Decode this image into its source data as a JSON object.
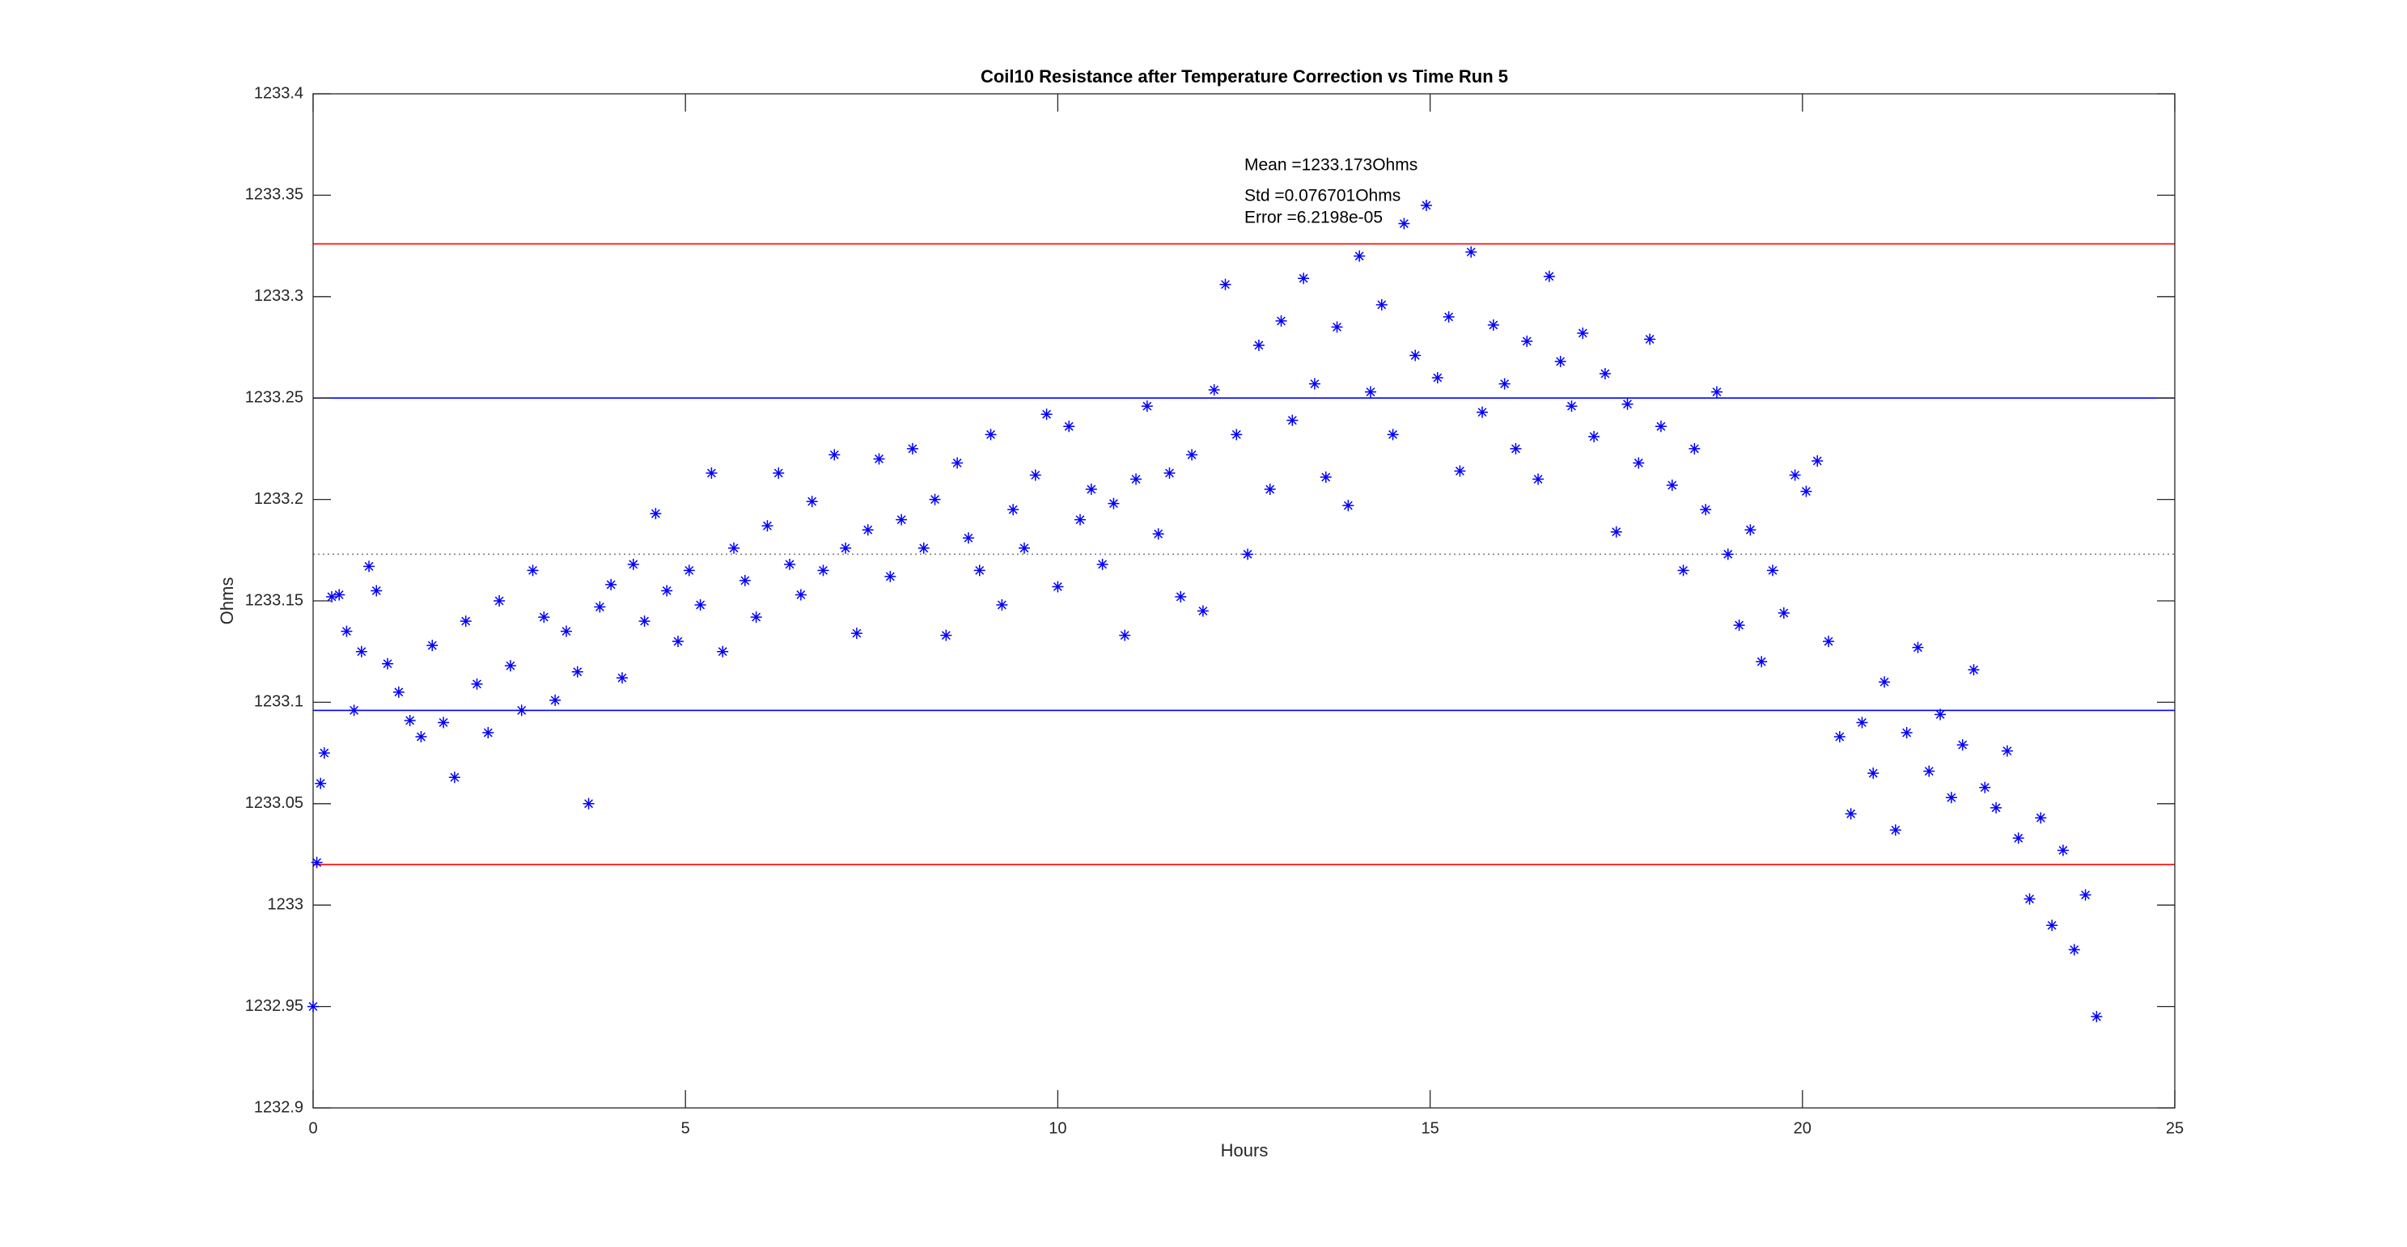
{
  "chart_data": {
    "type": "scatter",
    "title": "Coil10 Resistance after Temperature Correction vs Time Run 5",
    "x_label": "Hours",
    "y_label": "Ohms",
    "annotations": [
      "Mean =1233.173Ohms",
      "Std =0.076701Ohms",
      "Error =6.2198e-05"
    ],
    "xlim": [
      0,
      25
    ],
    "xticks": [
      0,
      5,
      10,
      15,
      20,
      25
    ],
    "ylim": [
      1232.9,
      1233.4
    ],
    "yticks": [
      1232.9,
      1232.95,
      1233,
      1233.05,
      1233.1,
      1233.15,
      1233.2,
      1233.25,
      1233.3,
      1233.35,
      1233.4
    ],
    "reference_lines": [
      {
        "value": 1233.326,
        "color": "#ff0000",
        "style": "solid"
      },
      {
        "value": 1233.25,
        "color": "#0000ff",
        "style": "solid"
      },
      {
        "value": 1233.173,
        "color": "#808080",
        "style": "dotted"
      },
      {
        "value": 1233.096,
        "color": "#0000ff",
        "style": "solid"
      },
      {
        "value": 1233.02,
        "color": "#ff0000",
        "style": "solid"
      }
    ],
    "series": [
      {
        "color": "#0000ff",
        "marker": "*",
        "x": [
          0,
          0.05,
          0.1,
          0.15,
          0.25,
          0.35,
          0.45,
          0.55,
          0.65,
          0.75,
          0.85,
          1.0,
          1.15,
          1.3,
          1.45,
          1.6,
          1.75,
          1.9,
          2.05,
          2.2,
          2.35,
          2.5,
          2.65,
          2.8,
          2.95,
          3.1,
          3.25,
          3.4,
          3.55,
          3.7,
          3.85,
          4.0,
          4.15,
          4.3,
          4.45,
          4.6,
          4.75,
          4.9,
          5.05,
          5.2,
          5.35,
          5.5,
          5.65,
          5.8,
          5.95,
          6.1,
          6.25,
          6.4,
          6.55,
          6.7,
          6.85,
          7.0,
          7.15,
          7.3,
          7.45,
          7.6,
          7.75,
          7.9,
          8.05,
          8.2,
          8.35,
          8.5,
          8.65,
          8.8,
          8.95,
          9.1,
          9.25,
          9.4,
          9.55,
          9.7,
          9.85,
          10.0,
          10.15,
          10.3,
          10.45,
          10.6,
          10.75,
          10.9,
          11.05,
          11.2,
          11.35,
          11.5,
          11.65,
          11.8,
          11.95,
          12.1,
          12.25,
          12.4,
          12.55,
          12.7,
          12.85,
          13.0,
          13.15,
          13.3,
          13.45,
          13.6,
          13.75,
          13.9,
          14.05,
          14.2,
          14.35,
          14.5,
          14.65,
          14.8,
          14.95,
          15.1,
          15.25,
          15.4,
          15.55,
          15.7,
          15.85,
          16.0,
          16.15,
          16.3,
          16.45,
          16.6,
          16.75,
          16.9,
          17.05,
          17.2,
          17.35,
          17.5,
          17.65,
          17.8,
          17.95,
          18.1,
          18.25,
          18.4,
          18.55,
          18.7,
          18.85,
          19.0,
          19.15,
          19.3,
          19.45,
          19.6,
          19.75,
          19.9,
          20.05,
          20.2,
          20.35,
          20.5,
          20.65,
          20.8,
          20.95,
          21.1,
          21.25,
          21.4,
          21.55,
          21.7,
          21.85,
          22.0,
          22.15,
          22.3,
          22.45,
          22.6,
          22.75,
          22.9,
          23.05,
          23.2,
          23.35,
          23.5,
          23.65,
          23.8,
          23.95
        ],
        "values": [
          1232.95,
          1233.021,
          1233.06,
          1233.075,
          1233.152,
          1233.153,
          1233.135,
          1233.096,
          1233.125,
          1233.167,
          1233.155,
          1233.119,
          1233.105,
          1233.091,
          1233.083,
          1233.128,
          1233.09,
          1233.063,
          1233.14,
          1233.109,
          1233.085,
          1233.15,
          1233.118,
          1233.096,
          1233.165,
          1233.142,
          1233.101,
          1233.135,
          1233.115,
          1233.05,
          1233.147,
          1233.158,
          1233.112,
          1233.168,
          1233.14,
          1233.193,
          1233.155,
          1233.13,
          1233.165,
          1233.148,
          1233.213,
          1233.125,
          1233.176,
          1233.16,
          1233.142,
          1233.187,
          1233.213,
          1233.168,
          1233.153,
          1233.199,
          1233.165,
          1233.222,
          1233.176,
          1233.134,
          1233.185,
          1233.22,
          1233.162,
          1233.19,
          1233.225,
          1233.176,
          1233.2,
          1233.133,
          1233.218,
          1233.181,
          1233.165,
          1233.232,
          1233.148,
          1233.195,
          1233.176,
          1233.212,
          1233.242,
          1233.157,
          1233.236,
          1233.19,
          1233.205,
          1233.168,
          1233.198,
          1233.133,
          1233.21,
          1233.246,
          1233.183,
          1233.213,
          1233.152,
          1233.222,
          1233.145,
          1233.254,
          1233.306,
          1233.232,
          1233.173,
          1233.276,
          1233.205,
          1233.288,
          1233.239,
          1233.309,
          1233.257,
          1233.211,
          1233.285,
          1233.197,
          1233.32,
          1233.253,
          1233.296,
          1233.232,
          1233.336,
          1233.271,
          1233.345,
          1233.26,
          1233.29,
          1233.214,
          1233.322,
          1233.243,
          1233.286,
          1233.257,
          1233.225,
          1233.278,
          1233.21,
          1233.31,
          1233.268,
          1233.246,
          1233.282,
          1233.231,
          1233.262,
          1233.184,
          1233.247,
          1233.218,
          1233.279,
          1233.236,
          1233.207,
          1233.165,
          1233.225,
          1233.195,
          1233.253,
          1233.173,
          1233.138,
          1233.185,
          1233.12,
          1233.165,
          1233.144,
          1233.212,
          1233.204,
          1233.219,
          1233.13,
          1233.083,
          1233.045,
          1233.09,
          1233.065,
          1233.11,
          1233.037,
          1233.085,
          1233.127,
          1233.066,
          1233.094,
          1233.053,
          1233.079,
          1233.116,
          1233.058,
          1233.048,
          1233.076,
          1233.033,
          1233.003,
          1233.043,
          1232.99,
          1233.027,
          1232.978,
          1233.005,
          1232.945
        ]
      }
    ]
  }
}
